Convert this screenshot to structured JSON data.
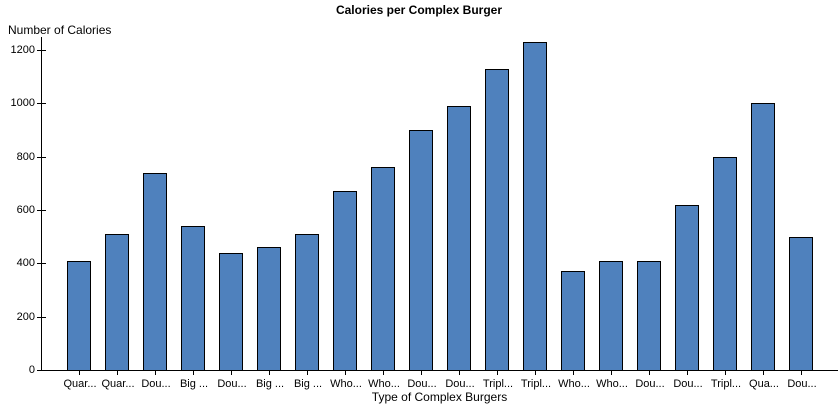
{
  "chart_data": {
    "type": "bar",
    "title": "Calories per Complex Burger",
    "xlabel": "Type of Complex Burgers",
    "ylabel": "Number of Calories",
    "categories": [
      "Quar...",
      "Quar...",
      "Dou...",
      "Big ...",
      "Dou...",
      "Big ...",
      "Big ...",
      "Who...",
      "Who...",
      "Dou...",
      "Dou...",
      "Tripl...",
      "Tripl...",
      "Who...",
      "Who...",
      "Dou...",
      "Dou...",
      "Tripl...",
      "Qua...",
      "Dou..."
    ],
    "values": [
      410,
      510,
      740,
      540,
      440,
      460,
      510,
      670,
      760,
      900,
      990,
      1130,
      1230,
      370,
      410,
      410,
      620,
      800,
      1000,
      500
    ],
    "ylim": [
      0,
      1200
    ],
    "y_ticks": [
      0,
      200,
      400,
      600,
      800,
      1000,
      1200
    ],
    "grid": false,
    "legend_position": "none",
    "bar_color": "#4f81bd",
    "bar_border_color": "#000000",
    "axis_color": "#000000",
    "background_color": "#ffffff"
  }
}
